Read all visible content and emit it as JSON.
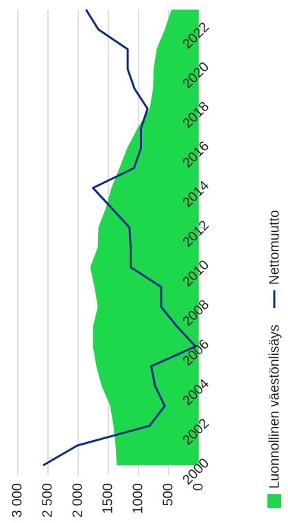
{
  "chart_data": {
    "type": "area_line",
    "x": [
      2000,
      2001,
      2002,
      2003,
      2004,
      2005,
      2006,
      2007,
      2008,
      2009,
      2010,
      2011,
      2012,
      2013,
      2014,
      2015,
      2016,
      2017,
      2018,
      2019,
      2020,
      2021,
      2022,
      2023
    ],
    "xlim": [
      2000,
      2023
    ],
    "xticks": [
      2000,
      2002,
      2004,
      2006,
      2008,
      2010,
      2012,
      2014,
      2016,
      2018,
      2020,
      2022
    ],
    "ylim": [
      0,
      3000
    ],
    "yticks": [
      0,
      500,
      1000,
      1500,
      {
        "value": 2000,
        "label": "2 000"
      },
      {
        "value": 2500,
        "label": "2 500"
      },
      {
        "value": 3000,
        "label": "3 000"
      }
    ],
    "grid": true,
    "legend": "bottom",
    "series": [
      {
        "name": "Luonnollinen väestönlisäys",
        "type": "area",
        "color": "#1ed84c",
        "values": [
          1360,
          1380,
          1415,
          1470,
          1610,
          1700,
          1755,
          1755,
          1675,
          1730,
          1800,
          1675,
          1665,
          1540,
          1450,
          1315,
          1190,
          1020,
          815,
          760,
          750,
          700,
          565,
          455
        ]
      },
      {
        "name": "Nettomuutto",
        "type": "line",
        "color": "#0a2a8c",
        "values": [
          2580,
          2015,
          815,
          565,
          725,
          790,
          55,
          360,
          625,
          625,
          1130,
          1130,
          1150,
          1450,
          1755,
          1075,
          960,
          960,
          850,
          1065,
          1180,
          1180,
          1665,
          1870
        ]
      }
    ]
  }
}
